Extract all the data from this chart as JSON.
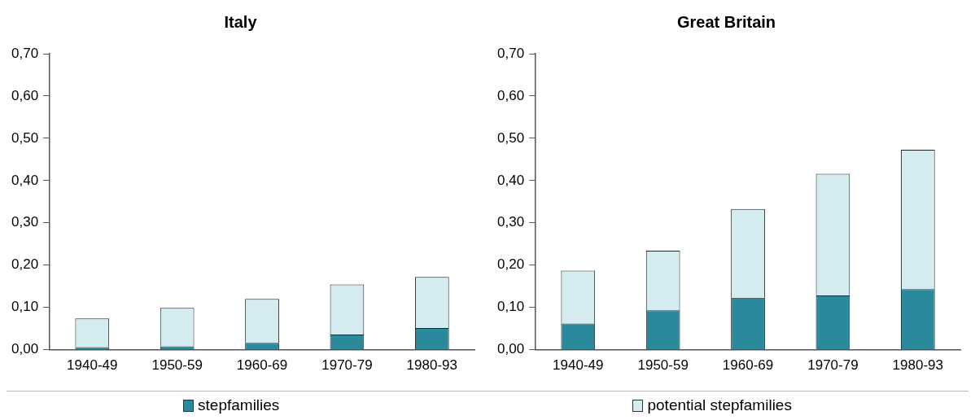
{
  "chart_data": [
    {
      "type": "bar",
      "title": "Italy",
      "stacked": true,
      "grid": false,
      "legend": "bottom",
      "categories": [
        "1940-49",
        "1950-59",
        "1960-69",
        "1970-79",
        "1980-93"
      ],
      "series": [
        {
          "name": "stepfamilies",
          "color": "#2a8a9c",
          "values": [
            0.003,
            0.008,
            0.016,
            0.036,
            0.051
          ]
        },
        {
          "name": "potential stepfamilies",
          "color": "#d4ebf0",
          "values": [
            0.068,
            0.091,
            0.104,
            0.118,
            0.121
          ]
        }
      ],
      "ylim": [
        0,
        0.7
      ],
      "yticks": [
        {
          "value": 0,
          "label": "0,00"
        },
        {
          "value": 0.1,
          "label": "0,10"
        },
        {
          "value": 0.2,
          "label": "0,20"
        },
        {
          "value": 0.3,
          "label": "0,30"
        },
        {
          "value": 0.4,
          "label": "0,40"
        },
        {
          "value": 0.5,
          "label": "0,50"
        },
        {
          "value": 0.6,
          "label": "0,60"
        },
        {
          "value": 0.7,
          "label": "0,70"
        }
      ]
    },
    {
      "type": "bar",
      "title": "Great Britain",
      "stacked": true,
      "grid": false,
      "categories": [
        "1940-49",
        "1950-59",
        "1960-69",
        "1970-79",
        "1980-93"
      ],
      "series": [
        {
          "color": "#2a8a9c",
          "values": [
            0.062,
            0.093,
            0.123,
            0.128,
            0.143
          ]
        },
        {
          "color": "#d4ebf0",
          "values": [
            0.125,
            0.141,
            0.21,
            0.288,
            0.33
          ]
        }
      ],
      "ylim": [
        0,
        0.7
      ],
      "yticks": [
        {
          "value": 0,
          "label": "0,00"
        },
        {
          "value": 0.1,
          "label": "0,10"
        },
        {
          "value": 0.2,
          "label": "0,20"
        },
        {
          "value": 0.3,
          "label": "0,30"
        },
        {
          "value": 0.4,
          "label": "0,40"
        },
        {
          "value": 0.5,
          "label": "0,50"
        },
        {
          "value": 0.6,
          "label": "0,60"
        },
        {
          "value": 0.7,
          "label": "0,70"
        }
      ]
    }
  ]
}
